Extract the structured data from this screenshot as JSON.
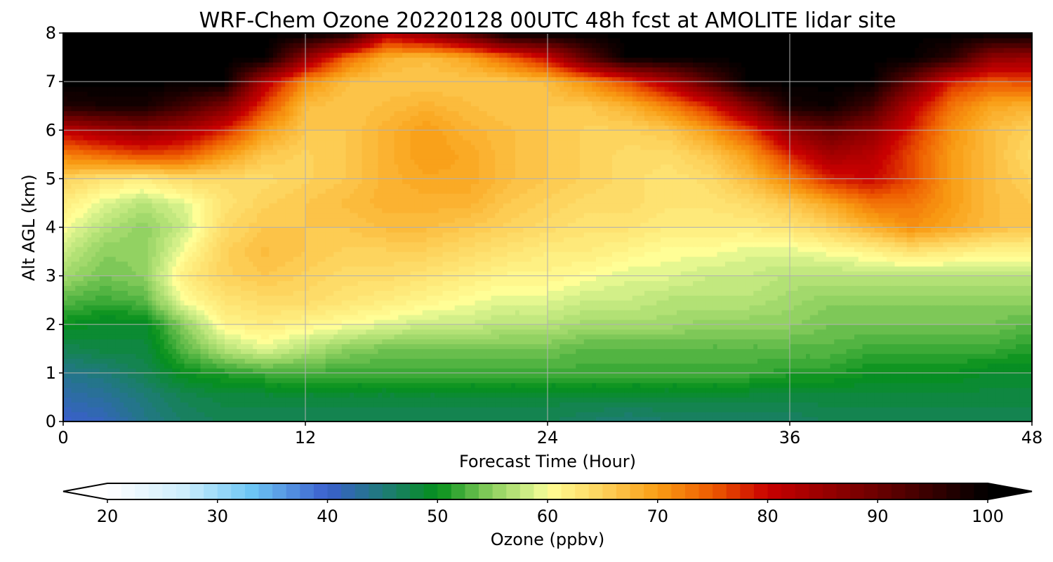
{
  "chart_data": {
    "type": "heatmap",
    "title": "WRF-Chem Ozone  20220128 00UTC 48h fcst at AMOLITE lidar site",
    "xlabel": "Forecast Time (Hour)",
    "ylabel": "Alt AGL (km)",
    "xlim": [
      0,
      48
    ],
    "ylim": [
      0,
      8
    ],
    "xticks": [
      0,
      12,
      24,
      36,
      48
    ],
    "yticks": [
      0,
      1,
      2,
      3,
      4,
      5,
      6,
      7,
      8
    ],
    "grid": true,
    "colorbar": {
      "label": "Ozone  (ppbv)",
      "range": [
        20,
        100
      ],
      "ticks": [
        20,
        30,
        40,
        50,
        60,
        70,
        80,
        90,
        100
      ],
      "extend": "both",
      "colors": [
        [
          20,
          "#ffffff"
        ],
        [
          27,
          "#cdeefc"
        ],
        [
          33,
          "#6ec7f5"
        ],
        [
          40,
          "#3a5fcd"
        ],
        [
          45,
          "#1f7a7a"
        ],
        [
          50,
          "#05901b"
        ],
        [
          55,
          "#8ed060"
        ],
        [
          59,
          "#def58f"
        ],
        [
          60,
          "#fffe96"
        ],
        [
          65,
          "#fdd25c"
        ],
        [
          70,
          "#f99d14"
        ],
        [
          75,
          "#ee5a00"
        ],
        [
          80,
          "#c80000"
        ],
        [
          90,
          "#6b0000"
        ],
        [
          100,
          "#000000"
        ]
      ]
    },
    "x": [
      0,
      2,
      4,
      6,
      8,
      10,
      12,
      14,
      16,
      18,
      20,
      22,
      24,
      26,
      28,
      30,
      32,
      34,
      36,
      38,
      40,
      42,
      44,
      46,
      48
    ],
    "y": [
      0,
      0.5,
      1,
      1.5,
      2,
      2.5,
      3,
      3.5,
      4,
      4.5,
      5,
      5.5,
      6,
      6.5,
      7,
      7.5,
      8
    ],
    "z": [
      [
        40,
        41,
        44,
        46,
        47,
        47,
        47,
        47,
        47,
        47,
        47,
        47,
        47,
        46,
        45,
        46,
        46,
        46,
        46,
        47,
        47,
        47,
        47,
        47,
        47
      ],
      [
        42,
        43,
        45,
        47,
        48,
        48,
        48,
        48,
        48,
        48,
        48,
        48,
        48,
        48,
        48,
        48,
        48,
        48,
        48,
        48,
        48,
        48,
        48,
        48,
        48
      ],
      [
        44,
        45,
        47,
        50,
        51,
        52,
        52,
        52,
        52,
        52,
        52,
        52,
        52,
        52,
        52,
        52,
        52,
        52,
        51,
        51,
        50,
        50,
        50,
        49,
        49
      ],
      [
        47,
        48,
        48,
        53,
        57,
        59,
        57,
        55,
        54,
        54,
        54,
        54,
        54,
        53,
        53,
        53,
        53,
        53,
        53,
        53,
        52,
        52,
        52,
        52,
        51
      ],
      [
        50,
        49,
        49,
        55,
        61,
        62,
        61,
        60,
        59,
        58,
        58,
        57,
        57,
        56,
        56,
        56,
        55,
        55,
        55,
        54,
        54,
        54,
        54,
        54,
        53
      ],
      [
        53,
        52,
        53,
        60,
        63,
        64,
        64,
        63,
        62,
        61,
        60,
        59,
        59,
        58,
        58,
        57,
        57,
        57,
        56,
        55,
        55,
        55,
        55,
        55,
        55
      ],
      [
        56,
        54,
        55,
        62,
        65,
        66,
        65,
        64,
        64,
        63,
        62,
        61,
        61,
        60,
        59,
        59,
        58,
        58,
        57,
        57,
        57,
        57,
        57,
        57,
        57
      ],
      [
        58,
        55,
        55,
        60,
        65,
        67,
        66,
        65,
        65,
        65,
        64,
        63,
        62,
        62,
        61,
        60,
        60,
        59,
        59,
        60,
        61,
        63,
        62,
        61,
        61
      ],
      [
        60,
        57,
        55,
        58,
        64,
        66,
        66,
        66,
        67,
        67,
        66,
        65,
        64,
        63,
        63,
        62,
        62,
        62,
        63,
        65,
        68,
        71,
        69,
        67,
        66
      ],
      [
        62,
        59,
        57,
        59,
        63,
        65,
        66,
        67,
        68,
        68,
        68,
        66,
        65,
        64,
        64,
        63,
        63,
        64,
        66,
        69,
        73,
        73,
        70,
        67,
        66
      ],
      [
        65,
        63,
        62,
        64,
        64,
        64,
        65,
        66,
        68,
        69,
        69,
        67,
        66,
        65,
        64,
        63,
        64,
        67,
        72,
        78,
        80,
        76,
        70,
        67,
        65
      ],
      [
        72,
        74,
        76,
        75,
        70,
        66,
        65,
        66,
        68,
        70,
        69,
        67,
        66,
        65,
        64,
        64,
        66,
        70,
        78,
        84,
        82,
        76,
        70,
        67,
        64
      ],
      [
        81,
        84,
        86,
        83,
        78,
        70,
        66,
        66,
        68,
        70,
        68,
        67,
        66,
        65,
        65,
        66,
        70,
        76,
        86,
        90,
        86,
        78,
        71,
        67,
        65
      ],
      [
        97,
        98,
        98,
        94,
        88,
        76,
        67,
        66,
        67,
        68,
        67,
        66,
        66,
        66,
        68,
        72,
        78,
        88,
        98,
        99,
        94,
        82,
        73,
        69,
        68
      ],
      [
        100,
        100,
        100,
        100,
        100,
        82,
        71,
        67,
        66,
        66,
        66,
        66,
        67,
        71,
        76,
        83,
        92,
        100,
        100,
        100,
        100,
        90,
        78,
        75,
        76
      ],
      [
        100,
        100,
        100,
        100,
        100,
        100,
        86,
        74,
        68,
        67,
        69,
        74,
        80,
        92,
        100,
        100,
        100,
        100,
        100,
        100,
        100,
        100,
        96,
        86,
        85
      ],
      [
        100,
        100,
        100,
        100,
        100,
        100,
        100,
        98,
        82,
        86,
        92,
        100,
        100,
        100,
        100,
        100,
        100,
        100,
        100,
        100,
        100,
        100,
        100,
        100,
        100
      ]
    ]
  }
}
